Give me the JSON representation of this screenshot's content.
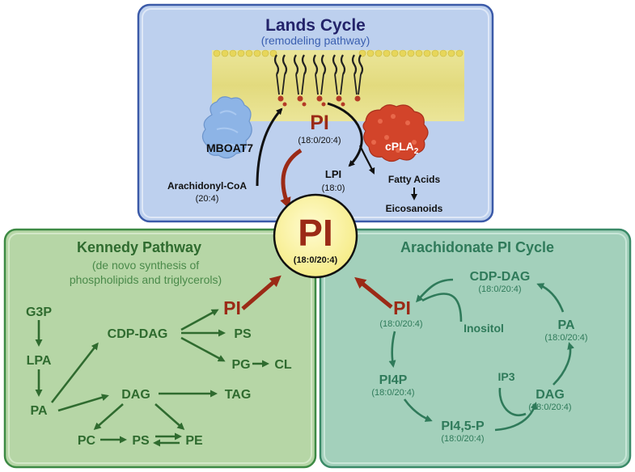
{
  "lands": {
    "title": "Lands Cycle",
    "subtitle": "(remodeling pathway)",
    "pi_label": "PI",
    "pi_sub": "(18:0/20:4)",
    "mboat7": "MBOAT7",
    "cpla2": "cPLA",
    "cpla2_sub": "2",
    "arachidonyl": "Arachidonyl-CoA",
    "arachidonyl_sub": "(20:4)",
    "lpi": "LPI",
    "lpi_sub": "(18:0)",
    "fatty_acids": "Fatty Acids",
    "eicosanoids": "Eicosanoids"
  },
  "center": {
    "label": "PI",
    "sub": "(18:0/20:4)"
  },
  "kennedy": {
    "title": "Kennedy Pathway",
    "subtitle_line1": "(de novo synthesis of",
    "subtitle_line2": "phospholipids and triglycerols)",
    "g3p": "G3P",
    "lpa": "LPA",
    "pa": "PA",
    "cdp_dag": "CDP-DAG",
    "pi": "PI",
    "ps_top": "PS",
    "pg": "PG",
    "cl": "CL",
    "dag": "DAG",
    "tag": "TAG",
    "pc": "PC",
    "ps_bottom": "PS",
    "pe": "PE"
  },
  "arachidonate": {
    "title": "Arachidonate PI Cycle",
    "pi": "PI",
    "pi_sub": "(18:0/20:4)",
    "cdp_dag": "CDP-DAG",
    "cdp_dag_sub": "(18:0/20:4)",
    "inositol": "Inositol",
    "pa": "PA",
    "pa_sub": "(18:0/20:4)",
    "pi4p": "PI4P",
    "pi4p_sub": "(18:0/20:4)",
    "ip3": "IP3",
    "dag": "DAG",
    "dag_sub": "(18:0/20:4)",
    "pi45p": "PI4,5-P",
    "pi45p_sub": "(18:0/20:4)"
  },
  "colors": {
    "lands_fill": "#bdd0ee",
    "lands_border": "#3b5aa8",
    "kennedy_fill": "#b6d6a6",
    "kennedy_border": "#3d8a44",
    "arach_fill": "#a3d0bb",
    "arach_border": "#3a8a68",
    "green_text": "#2f6b2f",
    "arach_text": "#2f7a5a",
    "pi_red": "#9b2a16",
    "title_navy": "#23236a",
    "subtitle_blue": "#3a5fb0",
    "center_fill": "#fbf5a6"
  }
}
